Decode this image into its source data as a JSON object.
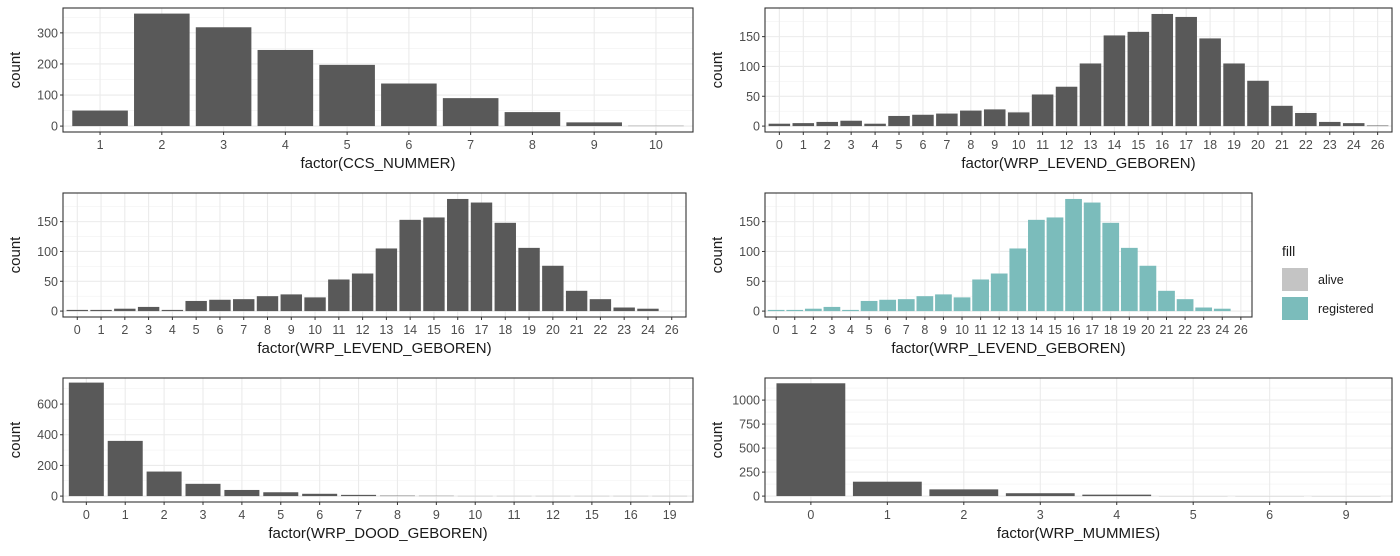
{
  "chart_data": [
    {
      "type": "bar",
      "categories": [
        "1",
        "2",
        "3",
        "4",
        "5",
        "6",
        "7",
        "8",
        "9",
        "10"
      ],
      "values": [
        50,
        362,
        318,
        245,
        197,
        137,
        90,
        45,
        12,
        1
      ],
      "yticks": [
        0,
        100,
        200,
        300
      ],
      "ylim": [
        0,
        380
      ],
      "xlabel": "factor(CCS_NUMMER)",
      "ylabel": "count",
      "fill": "#595959"
    },
    {
      "type": "bar",
      "categories": [
        "0",
        "1",
        "2",
        "3",
        "4",
        "5",
        "6",
        "7",
        "8",
        "9",
        "10",
        "11",
        "12",
        "13",
        "14",
        "15",
        "16",
        "17",
        "18",
        "19",
        "20",
        "21",
        "22",
        "23",
        "24",
        "26"
      ],
      "values": [
        4,
        5,
        7,
        9,
        4,
        17,
        19,
        21,
        26,
        28,
        23,
        53,
        66,
        105,
        152,
        158,
        188,
        183,
        147,
        105,
        76,
        34,
        22,
        7,
        5,
        1
      ],
      "yticks": [
        0,
        50,
        100,
        150
      ],
      "ylim": [
        0,
        198
      ],
      "xlabel": "factor(WRP_LEVEND_GEBOREN)",
      "ylabel": "count",
      "fill": "#595959"
    },
    {
      "type": "bar",
      "categories": [
        "0",
        "1",
        "2",
        "3",
        "4",
        "5",
        "6",
        "7",
        "8",
        "9",
        "10",
        "11",
        "12",
        "13",
        "14",
        "15",
        "16",
        "17",
        "18",
        "19",
        "20",
        "21",
        "22",
        "23",
        "24",
        "26"
      ],
      "values": [
        2,
        2,
        4,
        7,
        2,
        17,
        19,
        20,
        25,
        28,
        23,
        53,
        63,
        105,
        153,
        157,
        188,
        182,
        148,
        106,
        76,
        34,
        20,
        6,
        4,
        0
      ],
      "yticks": [
        0,
        50,
        100,
        150
      ],
      "ylim": [
        0,
        198
      ],
      "xlabel": "factor(WRP_LEVEND_GEBOREN)",
      "ylabel": "count",
      "fill": "#595959"
    },
    {
      "type": "bar",
      "categories": [
        "0",
        "1",
        "2",
        "3",
        "4",
        "5",
        "6",
        "7",
        "8",
        "9",
        "10",
        "11",
        "12",
        "13",
        "14",
        "15",
        "16",
        "17",
        "18",
        "19",
        "20",
        "21",
        "22",
        "23",
        "24",
        "26"
      ],
      "values": [
        2,
        2,
        4,
        7,
        2,
        17,
        19,
        20,
        25,
        28,
        23,
        53,
        63,
        105,
        153,
        157,
        188,
        182,
        148,
        106,
        76,
        34,
        20,
        6,
        4,
        0
      ],
      "yticks": [
        0,
        50,
        100,
        150
      ],
      "ylim": [
        0,
        198
      ],
      "xlabel": "factor(WRP_LEVEND_GEBOREN)",
      "ylabel": "count",
      "fill": "#7bbcbb"
    },
    {
      "type": "bar",
      "categories": [
        "0",
        "1",
        "2",
        "3",
        "4",
        "5",
        "6",
        "7",
        "8",
        "9",
        "10",
        "11",
        "12",
        "15",
        "16",
        "19"
      ],
      "values": [
        740,
        360,
        160,
        80,
        40,
        25,
        15,
        8,
        3,
        2,
        1,
        1,
        1,
        1,
        1,
        1
      ],
      "yticks": [
        0,
        200,
        400,
        600
      ],
      "ylim": [
        0,
        770
      ],
      "xlabel": "factor(WRP_DOOD_GEBOREN)",
      "ylabel": "count",
      "fill": "#595959"
    },
    {
      "type": "bar",
      "categories": [
        "0",
        "1",
        "2",
        "3",
        "4",
        "5",
        "6",
        "9"
      ],
      "values": [
        1175,
        150,
        70,
        30,
        15,
        1,
        1,
        1
      ],
      "yticks": [
        0,
        250,
        500,
        750,
        1000
      ],
      "ylim": [
        0,
        1230
      ],
      "xlabel": "factor(WRP_MUMMIES)",
      "ylabel": "count",
      "fill": "#595959"
    }
  ],
  "legend": {
    "title": "fill",
    "items": [
      {
        "label": "alive",
        "color": "#c4c4c4"
      },
      {
        "label": "registered",
        "color": "#7bbcbb"
      }
    ]
  },
  "colors": {
    "panel_border": "#333333",
    "grid": "#ebebeb",
    "bar_dark": "#595959",
    "bar_teal": "#7bbcbb"
  }
}
